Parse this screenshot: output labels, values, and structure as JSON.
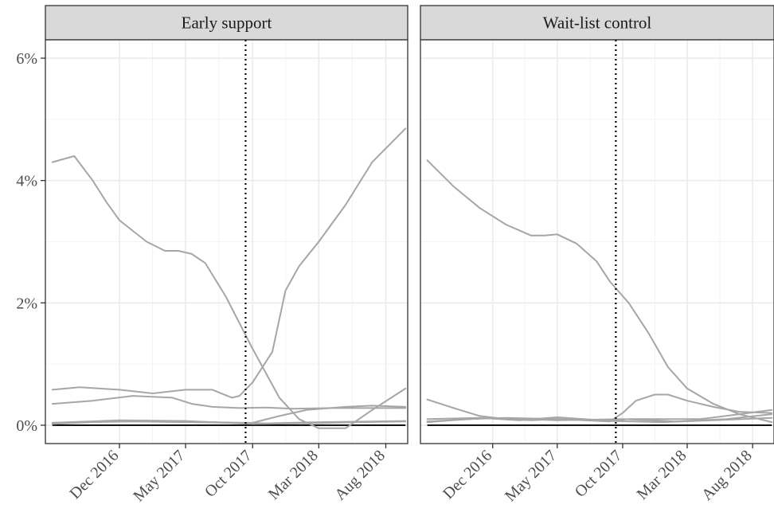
{
  "chart_data": {
    "type": "line",
    "x_axis": {
      "tick_labels": [
        "Dec 2016",
        "May 2017",
        "Oct 2017",
        "Mar 2018",
        "Aug 2018"
      ],
      "tick_dates": [
        "2016-12-01",
        "2017-05-01",
        "2017-10-01",
        "2018-03-01",
        "2018-08-01"
      ],
      "range": [
        "2016-06-15",
        "2018-09-20"
      ]
    },
    "y_axis": {
      "tick_labels": [
        "0%",
        "2%",
        "4%",
        "6%"
      ],
      "tick_values": [
        0,
        2,
        4,
        6
      ],
      "range": [
        -0.3,
        6.3
      ]
    },
    "reference_line": {
      "date": "2017-09-15",
      "style": "dotted"
    },
    "grid": true,
    "colors": {
      "series": "#a6a6a6",
      "baseline": "#000000",
      "strip_fill": "#d9d9d9",
      "grid": "#ebebeb"
    },
    "panels": [
      {
        "title": "Early support",
        "series": [
          {
            "points": [
              [
                "2016-07-01",
                4.3
              ],
              [
                "2016-08-20",
                4.4
              ],
              [
                "2016-10-01",
                4.0
              ],
              [
                "2016-11-01",
                3.65
              ],
              [
                "2016-12-01",
                3.35
              ],
              [
                "2017-02-01",
                3.0
              ],
              [
                "2017-03-15",
                2.85
              ],
              [
                "2017-04-15",
                2.85
              ],
              [
                "2017-05-15",
                2.8
              ],
              [
                "2017-06-15",
                2.65
              ],
              [
                "2017-08-01",
                2.1
              ],
              [
                "2017-10-01",
                1.25
              ],
              [
                "2017-12-01",
                0.45
              ],
              [
                "2018-01-15",
                0.1
              ],
              [
                "2018-03-01",
                -0.05
              ],
              [
                "2018-05-01",
                -0.05
              ],
              [
                "2018-07-01",
                0.25
              ],
              [
                "2018-09-15",
                0.6
              ]
            ]
          },
          {
            "points": [
              [
                "2016-07-01",
                0.58
              ],
              [
                "2016-09-01",
                0.62
              ],
              [
                "2016-12-01",
                0.58
              ],
              [
                "2017-02-15",
                0.52
              ],
              [
                "2017-05-01",
                0.58
              ],
              [
                "2017-07-01",
                0.58
              ],
              [
                "2017-08-15",
                0.45
              ],
              [
                "2017-09-01",
                0.48
              ],
              [
                "2017-10-01",
                0.7
              ],
              [
                "2017-11-15",
                1.2
              ],
              [
                "2017-12-15",
                2.2
              ],
              [
                "2018-01-15",
                2.6
              ],
              [
                "2018-03-01",
                3.0
              ],
              [
                "2018-05-01",
                3.6
              ],
              [
                "2018-07-01",
                4.3
              ],
              [
                "2018-09-15",
                4.85
              ]
            ]
          },
          {
            "points": [
              [
                "2016-07-01",
                0.35
              ],
              [
                "2016-10-01",
                0.4
              ],
              [
                "2017-01-01",
                0.48
              ],
              [
                "2017-04-01",
                0.45
              ],
              [
                "2017-05-15",
                0.35
              ],
              [
                "2017-07-01",
                0.3
              ],
              [
                "2017-09-01",
                0.28
              ],
              [
                "2017-11-01",
                0.29
              ],
              [
                "2018-01-01",
                0.27
              ],
              [
                "2018-04-01",
                0.28
              ],
              [
                "2018-07-01",
                0.28
              ],
              [
                "2018-09-15",
                0.28
              ]
            ]
          },
          {
            "points": [
              [
                "2016-07-01",
                0.03
              ],
              [
                "2016-10-01",
                0.05
              ],
              [
                "2017-01-01",
                0.06
              ],
              [
                "2017-05-01",
                0.05
              ],
              [
                "2017-08-01",
                0.04
              ],
              [
                "2017-10-01",
                0.04
              ],
              [
                "2017-12-01",
                0.15
              ],
              [
                "2018-02-01",
                0.25
              ],
              [
                "2018-05-01",
                0.3
              ],
              [
                "2018-07-01",
                0.32
              ],
              [
                "2018-09-15",
                0.3
              ]
            ]
          },
          {
            "points": [
              [
                "2016-07-01",
                0.02
              ],
              [
                "2016-11-01",
                0.06
              ],
              [
                "2017-03-01",
                0.07
              ],
              [
                "2017-07-01",
                0.05
              ],
              [
                "2017-11-01",
                0.03
              ],
              [
                "2018-03-01",
                0.05
              ],
              [
                "2018-07-01",
                0.06
              ],
              [
                "2018-09-15",
                0.07
              ]
            ]
          },
          {
            "points": [
              [
                "2016-07-01",
                0.04
              ],
              [
                "2016-12-01",
                0.08
              ],
              [
                "2017-05-01",
                0.07
              ],
              [
                "2017-10-01",
                0.02
              ],
              [
                "2018-02-01",
                0.03
              ],
              [
                "2018-06-01",
                0.05
              ],
              [
                "2018-09-15",
                0.06
              ]
            ]
          }
        ]
      },
      {
        "title": "Wait-list control",
        "series": [
          {
            "points": [
              [
                "2016-07-01",
                4.33
              ],
              [
                "2016-09-01",
                3.9
              ],
              [
                "2016-11-01",
                3.55
              ],
              [
                "2017-01-01",
                3.28
              ],
              [
                "2017-03-01",
                3.1
              ],
              [
                "2017-04-01",
                3.1
              ],
              [
                "2017-05-01",
                3.12
              ],
              [
                "2017-06-15",
                2.97
              ],
              [
                "2017-08-01",
                2.68
              ],
              [
                "2017-09-01",
                2.35
              ],
              [
                "2017-10-15",
                2.0
              ],
              [
                "2017-12-01",
                1.5
              ],
              [
                "2018-01-15",
                0.95
              ],
              [
                "2018-03-01",
                0.6
              ],
              [
                "2018-05-01",
                0.35
              ],
              [
                "2018-07-01",
                0.18
              ],
              [
                "2018-09-15",
                0.05
              ]
            ]
          },
          {
            "points": [
              [
                "2016-07-01",
                0.42
              ],
              [
                "2016-09-01",
                0.28
              ],
              [
                "2016-11-01",
                0.15
              ],
              [
                "2017-01-01",
                0.1
              ],
              [
                "2017-03-01",
                0.08
              ],
              [
                "2017-05-01",
                0.1
              ],
              [
                "2017-07-01",
                0.08
              ],
              [
                "2017-09-01",
                0.06
              ],
              [
                "2017-10-01",
                0.2
              ],
              [
                "2017-11-01",
                0.4
              ],
              [
                "2017-12-15",
                0.5
              ],
              [
                "2018-01-15",
                0.5
              ],
              [
                "2018-03-01",
                0.4
              ],
              [
                "2018-05-01",
                0.3
              ],
              [
                "2018-07-01",
                0.22
              ],
              [
                "2018-09-15",
                0.2
              ]
            ]
          },
          {
            "points": [
              [
                "2016-07-01",
                0.1
              ],
              [
                "2016-11-01",
                0.12
              ],
              [
                "2017-02-01",
                0.08
              ],
              [
                "2017-05-01",
                0.13
              ],
              [
                "2017-07-01",
                0.1
              ],
              [
                "2017-09-01",
                0.07
              ],
              [
                "2017-10-15",
                0.1
              ],
              [
                "2018-01-01",
                0.1
              ],
              [
                "2018-04-01",
                0.1
              ],
              [
                "2018-07-01",
                0.18
              ],
              [
                "2018-09-15",
                0.25
              ]
            ]
          },
          {
            "points": [
              [
                "2016-07-01",
                0.05
              ],
              [
                "2016-10-01",
                0.1
              ],
              [
                "2017-01-01",
                0.12
              ],
              [
                "2017-05-01",
                0.1
              ],
              [
                "2017-09-01",
                0.07
              ],
              [
                "2018-01-01",
                0.05
              ],
              [
                "2018-05-01",
                0.08
              ],
              [
                "2018-09-15",
                0.12
              ]
            ]
          },
          {
            "points": [
              [
                "2016-07-01",
                0.06
              ],
              [
                "2016-12-01",
                0.12
              ],
              [
                "2017-05-01",
                0.08
              ],
              [
                "2017-10-01",
                0.1
              ],
              [
                "2018-02-01",
                0.06
              ],
              [
                "2018-06-01",
                0.1
              ],
              [
                "2018-09-15",
                0.18
              ]
            ]
          }
        ]
      }
    ]
  }
}
